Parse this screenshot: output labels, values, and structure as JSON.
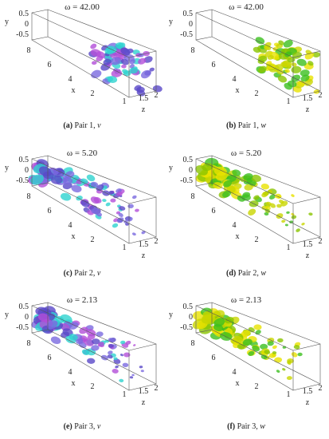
{
  "axes": {
    "y_label": "y",
    "y_ticks": [
      "0.5",
      "0",
      "-0.5"
    ],
    "x_label": "x",
    "x_ticks": [
      "8",
      "6",
      "4",
      "2"
    ],
    "z_label": "z",
    "z_ticks": [
      "1",
      "1.5",
      "2"
    ]
  },
  "panels": [
    {
      "title": "ω = 42.00",
      "caption": {
        "label": "(a)",
        "text": "Pair 1, ",
        "var": "v"
      }
    },
    {
      "title": "ω = 42.00",
      "caption": {
        "label": "(b)",
        "text": "Pair 1, ",
        "var": "w"
      }
    },
    {
      "title": "ω = 5.20",
      "caption": {
        "label": "(c)",
        "text": "Pair 2, ",
        "var": "v"
      }
    },
    {
      "title": "ω = 5.20",
      "caption": {
        "label": "(d)",
        "text": "Pair 2, ",
        "var": "w"
      }
    },
    {
      "title": "ω = 2.13",
      "caption": {
        "label": "(e)",
        "text": "Pair 3, ",
        "var": "v"
      }
    },
    {
      "title": "ω = 2.13",
      "caption": {
        "label": "(f)",
        "text": "Pair 3, ",
        "var": "w"
      }
    }
  ]
}
